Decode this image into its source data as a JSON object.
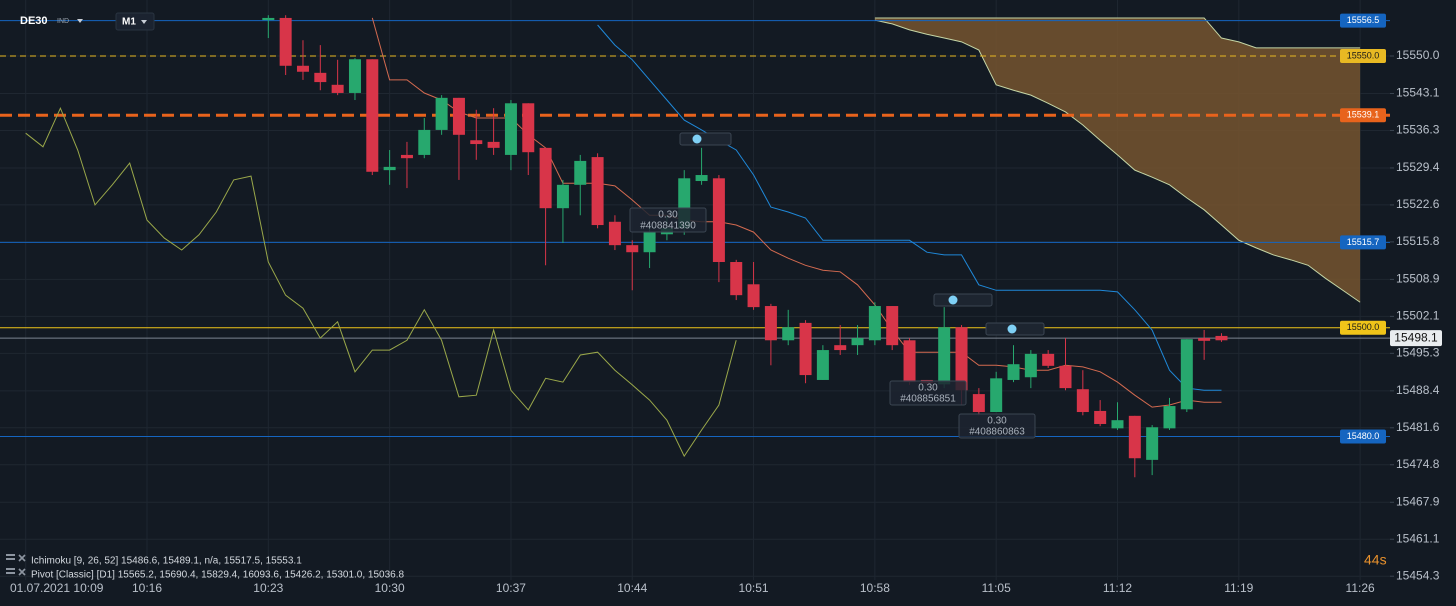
{
  "header": {
    "symbol": "DE30",
    "kind": "IND",
    "timeframe": "M1"
  },
  "chart_data": {
    "type": "candlestick",
    "categories": [
      "01.07.2021 10:09",
      null,
      null,
      null,
      null,
      null,
      null,
      "10:16",
      null,
      null,
      null,
      null,
      null,
      null,
      "10:23",
      null,
      null,
      null,
      null,
      null,
      null,
      "10:30",
      null,
      null,
      null,
      null,
      null,
      null,
      "10:37",
      null,
      null,
      null,
      null,
      null,
      null,
      "10:44",
      null,
      null,
      null,
      null,
      null,
      null,
      "10:51",
      null,
      null,
      null,
      null,
      null,
      null,
      "10:58",
      null,
      null,
      null,
      null,
      null,
      null,
      "11:05",
      null,
      null,
      null,
      null,
      null,
      null,
      "11:12",
      null,
      null,
      null,
      null,
      null,
      null,
      "11:19",
      null,
      null,
      null,
      null,
      null,
      null,
      "11:26"
    ],
    "open": [
      null,
      null,
      null,
      null,
      null,
      null,
      null,
      null,
      null,
      null,
      null,
      null,
      null,
      null,
      15556.6,
      15557.0,
      15548.2,
      15546.9,
      15544.7,
      15543.2,
      15549.4,
      15529.0,
      15531.8,
      15531.8,
      15536.4,
      15542.3,
      15534.5,
      15534.2,
      15531.8,
      15541.3,
      15533.1,
      15522.0,
      15526.3,
      15531.4,
      15519.5,
      15515.2,
      15513.9,
      15517.2,
      15518.3,
      15527.0,
      15527.5,
      15512.1,
      15508.0,
      15504.0,
      15497.7,
      15500.9,
      15490.4,
      15496.8,
      15496.8,
      15497.7,
      15504.0,
      15497.7,
      15490.4,
      15489.6,
      15500.1,
      15487.8,
      15484.5,
      15490.4,
      15490.9,
      15495.2,
      15493.0,
      15488.7,
      15484.7,
      15481.5,
      15483.8,
      15475.7,
      15481.5,
      15485.0,
      15498.1,
      15498.5,
      null,
      null,
      null,
      null,
      null,
      null,
      null,
      null
    ],
    "high": [
      null,
      null,
      null,
      null,
      null,
      null,
      null,
      null,
      null,
      null,
      null,
      null,
      null,
      null,
      15557.5,
      15557.5,
      15552.9,
      15552.0,
      15549.3,
      15549.6,
      15549.4,
      15532.7,
      15534.2,
      15538.6,
      15542.8,
      15542.3,
      15540.1,
      15540.4,
      15541.9,
      15541.3,
      15533.1,
      15527.2,
      15531.8,
      15532.1,
      15520.7,
      15516.1,
      15518.9,
      15520.7,
      15529.0,
      15533.1,
      15528.1,
      15512.5,
      15512.1,
      15504.4,
      15503.3,
      15501.4,
      15496.8,
      15500.5,
      15500.5,
      15504.7,
      15504.0,
      15498.1,
      15490.4,
      15503.8,
      15500.5,
      15488.9,
      15491.9,
      15496.8,
      15495.9,
      15495.9,
      15498.1,
      15492.2,
      15486.7,
      15486.3,
      15483.8,
      15482.1,
      15487.1,
      15497.9,
      15499.6,
      15499.0,
      null,
      null,
      null,
      null,
      null,
      null,
      null,
      null
    ],
    "low": [
      null,
      null,
      null,
      null,
      null,
      null,
      null,
      null,
      null,
      null,
      null,
      null,
      null,
      null,
      15553.3,
      15546.5,
      15545.6,
      15543.7,
      15542.8,
      15541.9,
      15528.1,
      15526.3,
      15525.7,
      15531.2,
      15535.5,
      15527.2,
      15530.9,
      15531.8,
      15529.0,
      15528.1,
      15511.5,
      15515.6,
      15520.7,
      15518.3,
      15514.3,
      15506.9,
      15511.0,
      15516.1,
      15517.1,
      15526.3,
      15508.4,
      15505.1,
      15503.3,
      15493.1,
      15496.8,
      15489.8,
      15490.4,
      15495.0,
      15495.0,
      15496.8,
      15495.9,
      15489.5,
      15489.5,
      15488.9,
      15485.8,
      15483.9,
      15484.5,
      15490.0,
      15488.9,
      15492.6,
      15488.5,
      15483.9,
      15481.9,
      15481.2,
      15472.5,
      15472.9,
      15481.2,
      15484.5,
      15494.1,
      15497.4,
      null,
      null,
      null,
      null,
      null,
      null,
      null,
      null
    ],
    "close": [
      null,
      null,
      null,
      null,
      null,
      null,
      null,
      null,
      null,
      null,
      null,
      null,
      null,
      null,
      15557.0,
      15548.2,
      15547.1,
      15545.2,
      15543.2,
      15549.4,
      15528.7,
      15529.6,
      15531.2,
      15536.4,
      15542.3,
      15535.5,
      15533.8,
      15533.1,
      15541.3,
      15532.3,
      15522.0,
      15526.3,
      15530.7,
      15518.9,
      15515.2,
      15513.9,
      15517.6,
      15518.3,
      15527.5,
      15528.1,
      15512.1,
      15506.0,
      15503.8,
      15497.7,
      15500.1,
      15491.3,
      15495.9,
      15495.9,
      15498.1,
      15504.0,
      15496.8,
      15490.0,
      15489.8,
      15500.1,
      15488.5,
      15484.5,
      15490.7,
      15493.3,
      15495.2,
      15493.0,
      15488.9,
      15484.5,
      15482.3,
      15483.0,
      15476.0,
      15481.7,
      15485.6,
      15497.9,
      15497.6,
      15497.7,
      null,
      null,
      null,
      null,
      null,
      null,
      null,
      null
    ],
    "up_color": "#27a86e",
    "down_color": "#d83549",
    "lines": [
      {
        "color": "#9aa84a",
        "values": [
          15535.8,
          15533.3,
          15540.4,
          15532.7,
          15522.6,
          15526.3,
          15530.3,
          15519.8,
          15516.5,
          15514.3,
          15517.1,
          15521.3,
          15527.2,
          15527.9,
          15512.1,
          15506.0,
          15503.6,
          15498.1,
          15501.1,
          15491.9,
          15495.9,
          15495.9,
          15497.7,
          15503.3,
          15497.7,
          15487.3,
          15487.6,
          15499.6,
          15488.5,
          15484.9,
          15490.7,
          15490.0,
          15495.0,
          15495.5,
          15492.2,
          15489.5,
          15486.7,
          15483.0,
          15476.4,
          15481.2,
          15485.8,
          15497.7,
          null,
          null,
          null,
          null,
          null,
          null,
          null,
          null,
          null,
          null,
          null,
          null,
          null,
          null,
          null,
          null,
          null,
          null,
          null,
          null,
          null,
          null,
          null,
          null,
          null,
          null,
          null,
          null,
          null,
          null,
          null,
          null,
          null,
          null,
          null,
          null
        ]
      },
      {
        "color": "#d36a50",
        "values": [
          null,
          null,
          null,
          null,
          null,
          null,
          null,
          null,
          null,
          null,
          null,
          null,
          null,
          null,
          null,
          null,
          null,
          null,
          null,
          null,
          15557.0,
          15545.6,
          15545.6,
          15543.2,
          15541.9,
          15539.7,
          15538.6,
          15538.6,
          15538.6,
          15535.5,
          15533.1,
          15526.6,
          15526.6,
          15526.6,
          15526.1,
          15523.5,
          15520.7,
          15520.7,
          15519.8,
          15519.5,
          15519.5,
          15518.9,
          15517.6,
          15514.3,
          15512.8,
          15511.5,
          15510.6,
          15510.3,
          15507.9,
          15504.2,
          15499.6,
          15495.5,
          15495.5,
          15495.5,
          15495.5,
          15493.1,
          15493.1,
          15492.8,
          15492.2,
          15492.2,
          15493.1,
          15492.8,
          15491.9,
          15490.0,
          15487.6,
          15485.4,
          15485.8,
          15486.7,
          15486.3,
          15486.3,
          null,
          null,
          null,
          null,
          null,
          null,
          null,
          null
        ]
      },
      {
        "color": "#1f88d8",
        "values": [
          null,
          null,
          null,
          null,
          null,
          null,
          null,
          null,
          null,
          null,
          null,
          null,
          null,
          null,
          null,
          null,
          null,
          null,
          null,
          null,
          null,
          null,
          null,
          null,
          null,
          null,
          null,
          null,
          null,
          null,
          null,
          null,
          null,
          15555.7,
          15552.0,
          15549.3,
          15545.6,
          15541.9,
          15538.2,
          15536.4,
          15534.5,
          15532.7,
          15528.1,
          15522.2,
          15521.3,
          15520.2,
          15516.1,
          15516.1,
          15516.1,
          15516.1,
          15516.1,
          15516.1,
          15513.9,
          15513.4,
          15513.4,
          15507.9,
          15506.9,
          15506.9,
          15506.9,
          15506.9,
          15506.9,
          15506.9,
          15506.9,
          15506.6,
          15503.3,
          15499.6,
          15492.2,
          15488.9,
          15488.5,
          15488.5,
          null,
          null,
          null,
          null,
          null,
          null,
          null,
          null
        ]
      }
    ],
    "cloud": {
      "color": "#76552f",
      "edge_color": "#c5d6a6",
      "upper": [
        null,
        null,
        null,
        null,
        null,
        null,
        null,
        null,
        null,
        null,
        null,
        null,
        null,
        null,
        null,
        null,
        null,
        null,
        null,
        null,
        null,
        null,
        null,
        null,
        null,
        null,
        null,
        null,
        null,
        null,
        null,
        null,
        null,
        null,
        null,
        null,
        null,
        null,
        null,
        null,
        null,
        null,
        null,
        null,
        null,
        null,
        null,
        null,
        null,
        15557.0,
        15557.0,
        15557.0,
        15557.0,
        15557.0,
        15557.0,
        15557.0,
        15557.0,
        15557.0,
        15557.0,
        15557.0,
        15557.0,
        15557.0,
        15557.0,
        15557.0,
        15557.0,
        15557.0,
        15557.0,
        15557.0,
        15557.0,
        15553.3,
        15552.6,
        15551.5,
        15551.5,
        15551.5,
        15551.5,
        15551.5,
        15551.5,
        15551.5
      ],
      "lower": [
        null,
        null,
        null,
        null,
        null,
        null,
        null,
        null,
        null,
        null,
        null,
        null,
        null,
        null,
        null,
        null,
        null,
        null,
        null,
        null,
        null,
        null,
        null,
        null,
        null,
        null,
        null,
        null,
        null,
        null,
        null,
        null,
        null,
        null,
        null,
        null,
        null,
        null,
        null,
        null,
        null,
        null,
        null,
        null,
        null,
        null,
        null,
        null,
        null,
        15556.6,
        15555.9,
        15554.8,
        15554.0,
        15553.3,
        15552.6,
        15551.1,
        15544.7,
        15543.7,
        15542.8,
        15541.3,
        15539.7,
        15537.3,
        15534.5,
        15531.8,
        15529.0,
        15527.7,
        15526.3,
        15523.9,
        15521.7,
        15518.9,
        15516.1,
        15514.7,
        15513.4,
        15512.5,
        15511.5,
        15509.1,
        15506.9,
        15504.7
      ]
    },
    "levels": [
      {
        "value": 15556.5,
        "label": "15556.5",
        "color": "#1565c0",
        "style": "solid"
      },
      {
        "value": 15550,
        "label": "15550.0",
        "color": "#e8b923",
        "style": "dashed"
      },
      {
        "value": 15539.1,
        "label": "15539.1",
        "color": "#e8631c",
        "style": "thick-dashed"
      },
      {
        "value": 15515.7,
        "label": "15515.7",
        "color": "#1565c0",
        "style": "solid"
      },
      {
        "value": 15500,
        "label": "15500.0",
        "color": "#f0c419",
        "style": "solid"
      },
      {
        "value": 15480,
        "label": "15480.0",
        "color": "#1565c0",
        "style": "solid"
      }
    ],
    "current_price": 15498.1,
    "ylim": [
      15453.6,
      15560.3
    ],
    "yticks": [
      {
        "value": 15550,
        "label": "15550.0"
      },
      15543.1,
      15536.3,
      15529.4,
      15522.6,
      15515.8,
      15508.9,
      15502.1,
      15495.3,
      15488.4,
      15481.6,
      15474.8,
      15467.9,
      15461.1,
      15454.3
    ],
    "grid": true,
    "trades": [
      {
        "volume": "0.30",
        "id": "#408841390"
      },
      {
        "volume": "0.30",
        "id": "#408856851"
      },
      {
        "volume": "0.30",
        "id": "#408860863"
      }
    ]
  },
  "indicators": [
    "Ichimoku  [9, 26, 52]  15486.6,  15489.1,  n/a,  15517.5,  15553.1",
    "Pivot  [Classic]  [D1]  15565.2,  15690.4,  15829.4,  16093.6,  15426.2,  15301.0,  15036.8"
  ],
  "timer": "44s"
}
